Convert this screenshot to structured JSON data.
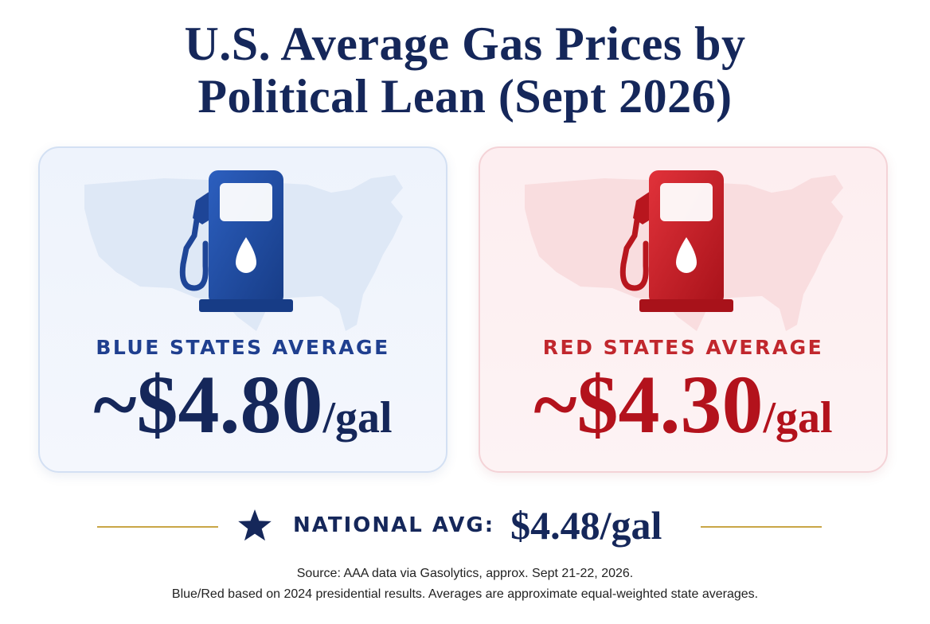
{
  "title": {
    "line1": "U.S. Average Gas Prices by",
    "line2": "Political Lean (Sept 2026)"
  },
  "cards": {
    "blue": {
      "label": "BLUE STATES AVERAGE",
      "price": "~$4.80",
      "unit": "/gal",
      "accent": "#1f4fa8",
      "icon": "gas-pump-icon"
    },
    "red": {
      "label": "RED STATES AVERAGE",
      "price": "~$4.30",
      "unit": "/gal",
      "accent": "#c41f26",
      "icon": "gas-pump-icon"
    }
  },
  "national": {
    "icon": "star-icon",
    "label": "NATIONAL AVG:",
    "value": "$4.48/gal"
  },
  "footnote": {
    "line1": "Source: AAA data via Gasolytics, approx. Sept 21-22, 2026.",
    "line2": "Blue/Red based on 2024 presidential results. Averages are approximate equal-weighted state averages."
  },
  "colors": {
    "navy": "#15275a",
    "gold": "#c9a646"
  }
}
